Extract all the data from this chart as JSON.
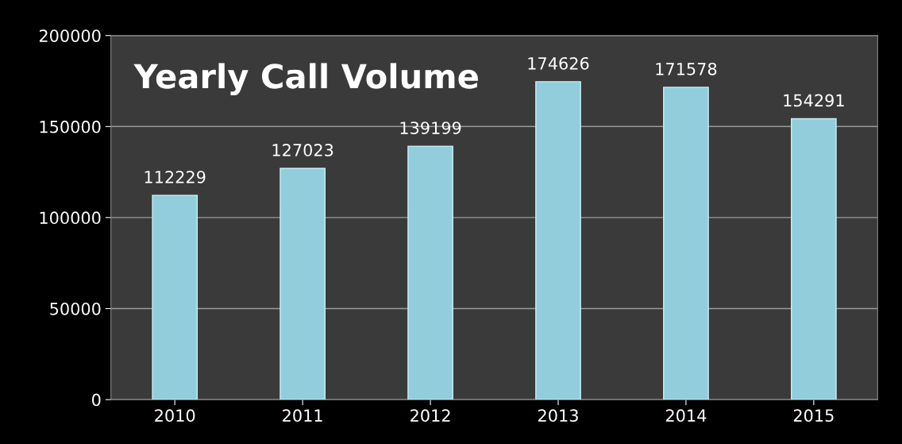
{
  "chart_data": {
    "type": "bar",
    "title": "Yearly Call Volume",
    "categories": [
      "2010",
      "2011",
      "2012",
      "2013",
      "2014",
      "2015"
    ],
    "values": [
      112229,
      127023,
      139199,
      174626,
      171578,
      154291
    ],
    "color": "#92cddc",
    "ylim": [
      0,
      200000
    ],
    "yticks": [
      0,
      50000,
      100000,
      150000,
      200000
    ],
    "grid": "y",
    "data_labels": true
  }
}
